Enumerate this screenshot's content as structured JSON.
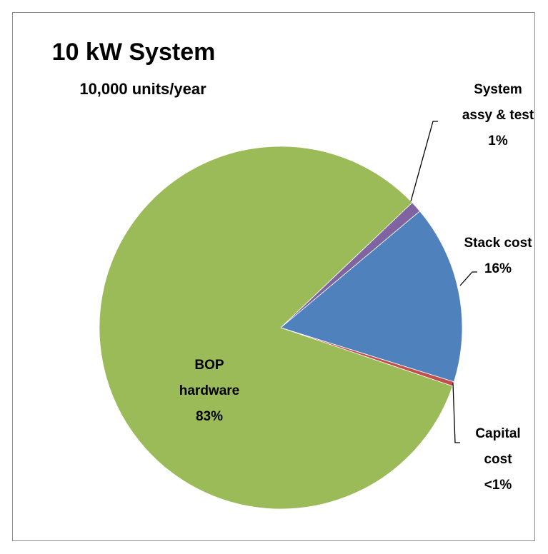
{
  "chart_data": {
    "type": "pie",
    "title": "10 kW System",
    "subtitle": "10,000 units/year",
    "categories": [
      "Stack cost",
      "Capital cost",
      "BOP hardware",
      "System assy & test"
    ],
    "values": [
      16,
      0.4,
      83,
      1
    ],
    "value_labels": [
      "16%",
      "<1%",
      "83%",
      "1%"
    ],
    "colors": [
      "#4f81bd",
      "#c0504d",
      "#9bbb59",
      "#8064a2"
    ]
  }
}
